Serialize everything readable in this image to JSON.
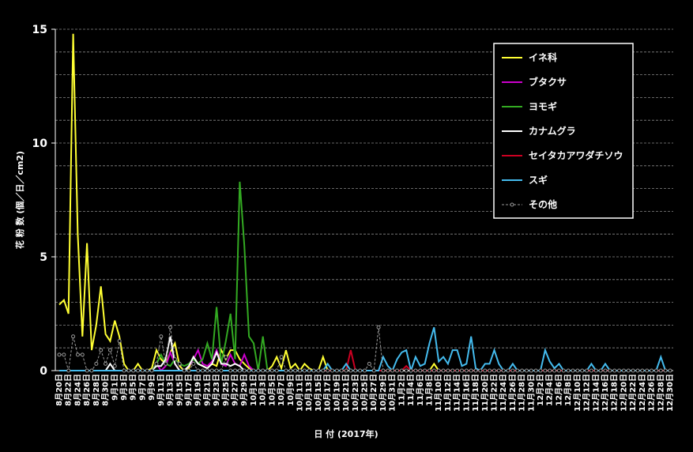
{
  "chart_data": {
    "type": "line",
    "xlabel": "日 付 (2017年)",
    "ylabel": "花 粉 数 (個／日／cm2)",
    "categories": [
      "8月20日",
      null,
      "8月22日",
      null,
      "8月24日",
      null,
      "8月26日",
      null,
      "8月28日",
      null,
      "8月30日",
      null,
      "9月1日",
      null,
      "9月3日",
      null,
      "9月5日",
      null,
      "9月7日",
      null,
      "9月9日",
      null,
      "9月11日",
      null,
      "9月13日",
      null,
      "9月15日",
      null,
      "9月17日",
      null,
      "9月19日",
      null,
      "9月21日",
      null,
      "9月23日",
      null,
      "9月25日",
      null,
      "9月27日",
      null,
      "9月29日",
      null,
      "10月1日",
      null,
      "10月3日",
      null,
      "10月5日",
      null,
      "10月7日",
      null,
      "10月9日",
      null,
      "10月11日",
      null,
      "10月13日",
      null,
      "10月15日",
      null,
      "10月17日",
      null,
      "10月19日",
      null,
      "10月21日",
      null,
      "10月23日",
      null,
      "10月25日",
      null,
      "10月27日",
      null,
      "10月29日",
      null,
      "10月31日",
      null,
      "11月2日",
      null,
      "11月4日",
      null,
      "11月6日",
      null,
      "11月8日",
      null,
      "11月10日",
      null,
      "11月12日",
      null,
      "11月14日",
      null,
      "11月16日",
      null,
      "11月18日",
      null,
      "11月20日",
      null,
      "11月22日",
      null,
      "11月24日",
      null,
      "11月26日",
      null,
      "11月28日",
      null,
      "11月30日",
      null,
      "12月2日",
      null,
      "12月4日",
      null,
      "12月6日",
      null,
      "12月8日",
      null,
      "12月10日",
      null,
      "12月12日",
      null,
      "12月14日",
      null,
      "12月16日",
      null,
      "12月18日",
      null,
      "12月20日",
      null,
      "12月22日",
      null,
      "12月24日",
      null,
      "12月26日",
      null,
      "12月28日",
      null,
      "12月30日"
    ],
    "series": [
      {
        "name": "イネ科",
        "color": "#ffff33",
        "values": [
          2.9,
          3.1,
          2.5,
          14.8,
          6,
          1.5,
          5.6,
          0.9,
          2,
          3.7,
          1.6,
          1.3,
          2.2,
          1.5,
          0.3,
          0,
          0,
          0.3,
          0,
          0,
          0.1,
          0.9,
          0.5,
          0.3,
          0.8,
          1.2,
          0.2,
          0,
          0.1,
          0.6,
          0.3,
          0.2,
          0.1,
          0.3,
          0.2,
          0.9,
          0.5,
          0.9,
          0.9,
          0.5,
          0.3,
          0.1,
          0,
          0,
          0,
          0,
          0.2,
          0.6,
          0.1,
          0.9,
          0.1,
          0.3,
          0,
          0.3,
          0.1,
          0,
          0,
          0.6,
          0,
          0,
          0,
          0,
          0,
          0,
          0,
          0,
          0,
          0,
          0,
          0,
          0,
          0,
          0,
          0,
          0,
          0,
          0,
          0,
          0,
          0,
          0,
          0.3,
          0,
          0,
          0,
          0,
          0,
          0,
          0,
          0,
          0,
          0,
          0,
          0,
          0,
          0,
          0,
          0,
          0,
          0,
          0,
          0,
          0,
          0,
          0,
          0,
          0,
          0,
          0,
          0,
          0,
          0,
          0,
          0,
          0,
          0,
          0,
          0,
          0,
          0,
          0,
          0,
          0,
          0,
          0,
          0,
          0,
          0,
          0,
          0,
          0,
          0,
          0
        ]
      },
      {
        "name": "ブタクサ",
        "color": "#cc00cc",
        "values": [
          0,
          0,
          0,
          0,
          0,
          0,
          0,
          0,
          0,
          0,
          0,
          0,
          0,
          0,
          0,
          0,
          0,
          0,
          0,
          0,
          0,
          0.3,
          0,
          0.2,
          0.8,
          0.3,
          0,
          0,
          0.2,
          0.5,
          0.9,
          0.3,
          0.2,
          0.4,
          0.9,
          0.3,
          0.2,
          0.7,
          0.3,
          0.2,
          0.7,
          0.2,
          0,
          0,
          0,
          0,
          0,
          0,
          0,
          0,
          0,
          0,
          0,
          0,
          0,
          0,
          0,
          0,
          0,
          0,
          0,
          0,
          0,
          0,
          0,
          0,
          0,
          0,
          0,
          0,
          0,
          0,
          0,
          0,
          0,
          0,
          0,
          0,
          0,
          0,
          0,
          0,
          0,
          0,
          0,
          0,
          0,
          0,
          0,
          0,
          0,
          0,
          0,
          0,
          0,
          0,
          0,
          0,
          0,
          0,
          0,
          0,
          0,
          0,
          0,
          0,
          0,
          0,
          0,
          0,
          0,
          0,
          0,
          0,
          0,
          0,
          0,
          0,
          0,
          0,
          0,
          0,
          0,
          0,
          0,
          0,
          0,
          0,
          0,
          0,
          0,
          0,
          0
        ]
      },
      {
        "name": "ヨモギ",
        "color": "#33aa22",
        "values": [
          0,
          0,
          0,
          0,
          0,
          0,
          0,
          0,
          0,
          0,
          0,
          0,
          0,
          0,
          0,
          0,
          0,
          0,
          0,
          0,
          0,
          0.3,
          0.7,
          0.3,
          0.2,
          0.5,
          0.3,
          0.2,
          0.3,
          0.5,
          0.3,
          0.5,
          1.2,
          0.5,
          2.8,
          0.3,
          1.3,
          2.5,
          0.5,
          8.3,
          5.5,
          1.5,
          1.2,
          0,
          1.5,
          0,
          0,
          0,
          0,
          0,
          0,
          0,
          0,
          0,
          0,
          0,
          0,
          0,
          0,
          0,
          0,
          0,
          0,
          0,
          0,
          0,
          0,
          0,
          0,
          0,
          0,
          0,
          0,
          0,
          0,
          0,
          0,
          0,
          0,
          0,
          0,
          0,
          0,
          0,
          0,
          0,
          0,
          0,
          0,
          0,
          0,
          0,
          0,
          0,
          0,
          0,
          0,
          0,
          0,
          0,
          0,
          0,
          0,
          0,
          0,
          0,
          0,
          0,
          0,
          0,
          0,
          0,
          0,
          0,
          0,
          0,
          0,
          0,
          0,
          0,
          0,
          0,
          0,
          0,
          0,
          0,
          0,
          0,
          0,
          0,
          0,
          0,
          0
        ]
      },
      {
        "name": "カナムグラ",
        "color": "#ffffff",
        "values": [
          0,
          0,
          0,
          0,
          0,
          0,
          0,
          0,
          0,
          0,
          0,
          0.3,
          0,
          0,
          0,
          0,
          0,
          0,
          0,
          0,
          0,
          0.2,
          0.2,
          0.5,
          1.5,
          0.3,
          0,
          0,
          0.2,
          0.6,
          0.3,
          0.2,
          0.1,
          0.3,
          0.8,
          0.3,
          0.3,
          0.2,
          0.3,
          0.2,
          0,
          0,
          0,
          0,
          0,
          0,
          0,
          0,
          0,
          0,
          0,
          0,
          0,
          0,
          0,
          0,
          0,
          0,
          0,
          0,
          0,
          0,
          0,
          0,
          0,
          0,
          0,
          0,
          0,
          0,
          0,
          0,
          0,
          0,
          0,
          0,
          0,
          0,
          0,
          0,
          0,
          0,
          0,
          0,
          0,
          0,
          0,
          0,
          0,
          0,
          0,
          0,
          0,
          0,
          0,
          0,
          0,
          0,
          0,
          0,
          0,
          0,
          0,
          0,
          0,
          0,
          0,
          0,
          0,
          0,
          0,
          0,
          0,
          0,
          0,
          0,
          0,
          0,
          0,
          0,
          0,
          0,
          0,
          0,
          0,
          0,
          0,
          0,
          0,
          0,
          0,
          0,
          0
        ]
      },
      {
        "name": "セイタカアワダチソウ",
        "color": "#cc0022",
        "values": [
          0,
          0,
          0,
          0,
          0,
          0,
          0,
          0,
          0,
          0,
          0,
          0,
          0,
          0,
          0,
          0,
          0,
          0,
          0,
          0,
          0,
          0,
          0,
          0,
          0,
          0,
          0,
          0,
          0,
          0,
          0,
          0,
          0,
          0,
          0,
          0,
          0,
          0,
          0,
          0,
          0,
          0,
          0,
          0,
          0,
          0,
          0,
          0,
          0,
          0,
          0,
          0,
          0,
          0,
          0,
          0,
          0,
          0,
          0,
          0,
          0,
          0,
          0,
          0.9,
          0,
          0,
          0,
          0,
          0,
          0,
          0,
          0,
          0,
          0,
          0,
          0.2,
          0,
          0,
          0,
          0,
          0,
          0,
          0,
          0,
          0,
          0,
          0,
          0,
          0,
          0,
          0,
          0,
          0,
          0,
          0,
          0,
          0,
          0,
          0,
          0,
          0,
          0,
          0,
          0,
          0,
          0,
          0,
          0,
          0,
          0,
          0,
          0,
          0,
          0,
          0,
          0,
          0,
          0,
          0,
          0,
          0,
          0,
          0,
          0,
          0,
          0,
          0,
          0,
          0,
          0,
          0,
          0,
          0
        ]
      },
      {
        "name": "スギ",
        "color": "#44bbee",
        "values": [
          0,
          0,
          0,
          0,
          0,
          0,
          0,
          0,
          0,
          0,
          0,
          0,
          0,
          0,
          0,
          0,
          0,
          0,
          0,
          0,
          0,
          0,
          0,
          0,
          0,
          0,
          0,
          0,
          0,
          0,
          0,
          0,
          0,
          0,
          0,
          0,
          0,
          0,
          0,
          0,
          0,
          0,
          0,
          0,
          0,
          0,
          0,
          0,
          0,
          0,
          0,
          0,
          0,
          0,
          0,
          0,
          0,
          0,
          0.3,
          0,
          0,
          0,
          0.3,
          0,
          0,
          0,
          0,
          0,
          0,
          0,
          0.6,
          0.2,
          0,
          0.5,
          0.8,
          0.9,
          0,
          0.6,
          0.2,
          0.3,
          1.2,
          1.9,
          0.4,
          0.6,
          0.3,
          0.9,
          0.9,
          0.2,
          0.3,
          1.5,
          0.1,
          0,
          0.3,
          0.3,
          0.9,
          0.3,
          0,
          0,
          0.3,
          0,
          0,
          0,
          0,
          0,
          0,
          0.9,
          0.4,
          0.1,
          0.3,
          0,
          0,
          0,
          0,
          0,
          0,
          0.3,
          0,
          0,
          0.3,
          0,
          0,
          0,
          0,
          0,
          0,
          0,
          0,
          0,
          0,
          0,
          0.6,
          0,
          0
        ]
      },
      {
        "name": "その他",
        "color": "#999999",
        "linestyle": "dashed",
        "marker": "circle",
        "values": [
          0.7,
          0.7,
          0,
          1.5,
          0.7,
          0.7,
          0,
          0,
          0.3,
          0.9,
          0.3,
          0.9,
          0.2,
          1.3,
          0,
          0,
          0,
          0,
          0,
          0,
          0,
          0.3,
          1.5,
          0.3,
          1.9,
          0.5,
          0.3,
          0,
          0,
          0.3,
          0,
          0,
          0,
          0,
          0,
          0,
          0.6,
          0,
          0,
          0,
          0,
          0,
          0,
          0,
          0,
          0,
          0,
          0,
          0.6,
          0,
          0,
          0,
          0,
          0,
          0,
          0,
          0,
          0,
          0,
          0,
          0,
          0,
          0,
          0,
          0,
          0,
          0,
          0.3,
          0,
          1.9,
          0,
          0,
          0,
          0,
          0,
          0,
          0,
          0,
          0,
          0,
          0,
          0,
          0,
          0,
          0,
          0,
          0,
          0,
          0,
          0,
          0,
          0,
          0,
          0,
          0,
          0,
          0,
          0,
          0,
          0,
          0,
          0,
          0,
          0,
          0,
          0,
          0,
          0,
          0,
          0,
          0,
          0,
          0,
          0,
          0,
          0,
          0,
          0,
          0,
          0,
          0,
          0,
          0,
          0,
          0,
          0,
          0,
          0,
          0,
          0,
          0,
          0,
          0
        ]
      }
    ],
    "ylim": [
      0,
      15
    ],
    "yticks": [
      0,
      5,
      10,
      15
    ],
    "ygridlines": [
      1,
      2,
      3,
      4,
      5,
      6,
      7,
      8,
      9,
      10,
      11,
      12,
      13,
      14,
      15
    ],
    "grid": true,
    "legend": "upper right"
  }
}
